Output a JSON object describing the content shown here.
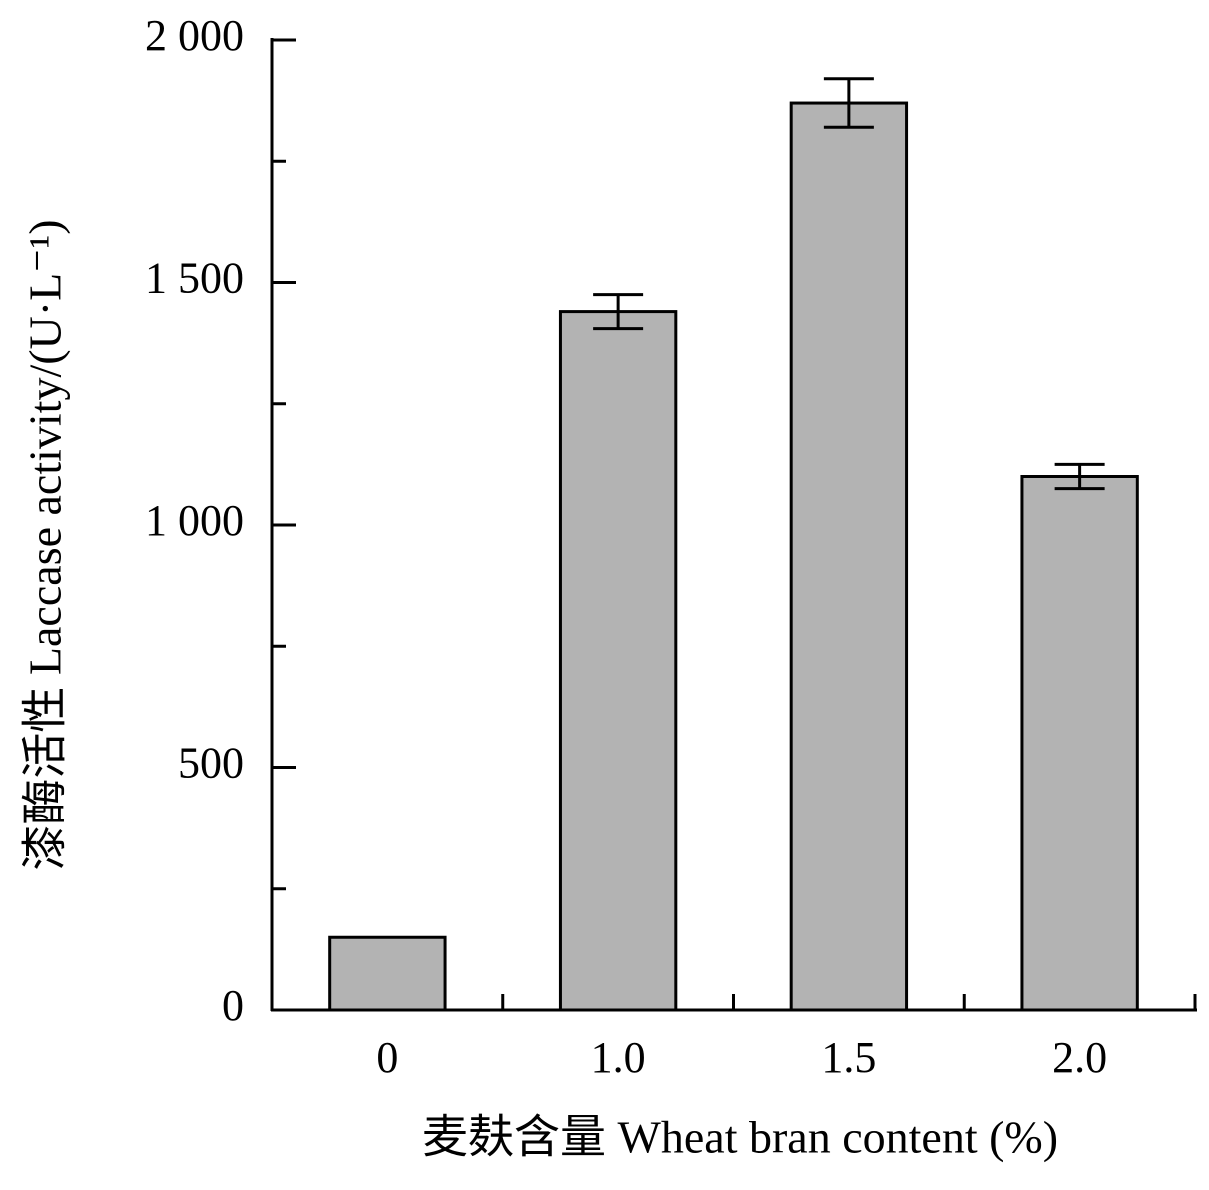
{
  "chart_data": {
    "type": "bar",
    "x_label": "麦麸含量 Wheat bran content (%)",
    "y_label": "漆酶活性 Laccase activity/(U·L⁻¹)",
    "categories": [
      "0",
      "1.0",
      "1.5",
      "2.0"
    ],
    "values": [
      150,
      1440,
      1870,
      1100
    ],
    "errors": [
      0,
      35,
      50,
      25
    ],
    "color": "#b3b3b3",
    "ylim": [
      0,
      2000
    ],
    "yticks": [
      {
        "value": 0,
        "label": "0"
      },
      500,
      {
        "value": 1000,
        "label": "1 000"
      },
      {
        "value": 1500,
        "label": "1 500"
      },
      {
        "value": 2000,
        "label": "2 000"
      }
    ],
    "yticks_minor": [
      250,
      750,
      1250,
      1750
    ],
    "grid": false
  }
}
